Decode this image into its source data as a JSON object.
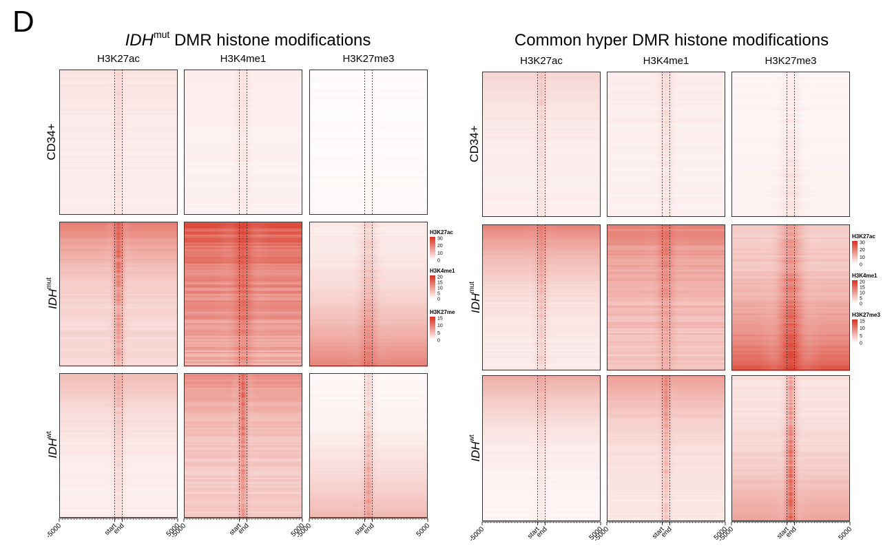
{
  "panel_letter": "D",
  "chart_data": [
    {
      "type": "heatmap",
      "title_italic": "IDH",
      "title_sup": "mut",
      "title_rest": " DMR histone modifications",
      "columns": [
        "H3K27ac",
        "H3K4me1",
        "H3K27me3"
      ],
      "rows": [
        {
          "label": "CD34+",
          "italic": "",
          "sup": ""
        },
        {
          "label": "",
          "italic": "IDH",
          "sup": "mut"
        },
        {
          "label": "",
          "italic": "IDH",
          "sup": "wt"
        }
      ],
      "x_ticks": [
        "-5000",
        "start",
        "end",
        "5000"
      ],
      "x_range": [
        -5000,
        5000
      ],
      "legend": [
        {
          "name": "H3K27ac",
          "ticks": [
            "30",
            "20",
            "10",
            "0"
          ],
          "range": [
            0,
            30
          ]
        },
        {
          "name": "H3K4me1",
          "ticks": [
            "20",
            "15",
            "10",
            "5",
            "0"
          ],
          "range": [
            0,
            20
          ]
        },
        {
          "name": "H3K27me",
          "ticks": [
            "15",
            "10",
            "5",
            "0"
          ],
          "range": [
            0,
            15
          ]
        }
      ],
      "low_color": "#ffffff",
      "high_color": "#d7301f"
    },
    {
      "type": "heatmap",
      "title_italic": "",
      "title_sup": "",
      "title_rest": "Common hyper DMR histone modifications",
      "columns": [
        "H3K27ac",
        "H3K4me1",
        "H3K27me3"
      ],
      "rows": [
        {
          "label": "CD34+",
          "italic": "",
          "sup": ""
        },
        {
          "label": "",
          "italic": "IDH",
          "sup": "mut"
        },
        {
          "label": "",
          "italic": "IDH",
          "sup": "wt"
        }
      ],
      "x_ticks": [
        "-5000",
        "start",
        "end",
        "5000"
      ],
      "x_range": [
        -5000,
        5000
      ],
      "legend": [
        {
          "name": "H3K27ac",
          "ticks": [
            "30",
            "20",
            "10",
            "0"
          ],
          "range": [
            0,
            30
          ]
        },
        {
          "name": "H3K4me1",
          "ticks": [
            "20",
            "15",
            "10",
            "5",
            "0"
          ],
          "range": [
            0,
            20
          ]
        },
        {
          "name": "H3K27me3",
          "ticks": [
            "15",
            "10",
            "5",
            "0"
          ],
          "range": [
            0,
            15
          ]
        }
      ],
      "low_color": "#ffffff",
      "high_color": "#d7301f"
    }
  ]
}
